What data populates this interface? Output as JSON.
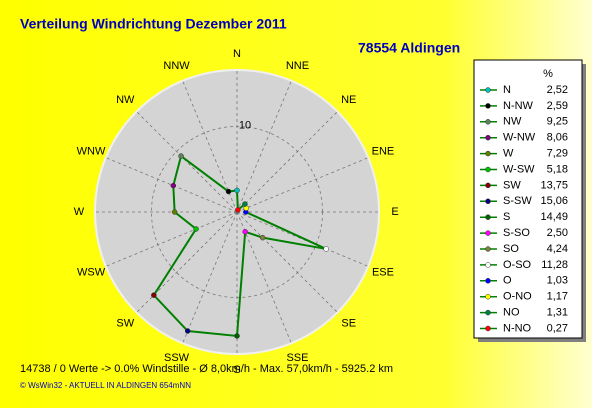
{
  "chart_data": {
    "type": "radar",
    "title": "Verteilung Windrichtung   Dezember 2011",
    "subtitle": "78554 Aldingen",
    "categories": [
      "N",
      "NNE",
      "NE",
      "ENE",
      "E",
      "ESE",
      "SE",
      "SSE",
      "S",
      "SSW",
      "SW",
      "WSW",
      "W",
      "WNW",
      "NW",
      "NNW"
    ],
    "legend_title": "%",
    "legend_labels": [
      "N",
      "N-NW",
      "NW",
      "W-NW",
      "W",
      "W-SW",
      "SW",
      "S-SW",
      "S",
      "S-SO",
      "SO",
      "O-SO",
      "O",
      "O-NO",
      "NO",
      "N-NO"
    ],
    "values": [
      2.52,
      2.59,
      9.25,
      8.06,
      7.29,
      5.18,
      13.75,
      15.06,
      14.49,
      2.5,
      4.24,
      11.28,
      1.03,
      1.17,
      1.31,
      0.27
    ],
    "value_labels": [
      "2,52",
      "2,59",
      "9,25",
      "8,06",
      "7,29",
      "5,18",
      "13,75",
      "15,06",
      "14,49",
      "2,50",
      "4,24",
      "11,28",
      "1,03",
      "1,17",
      "1,31",
      "0,27"
    ],
    "colors": [
      "#00c0c0",
      "#000000",
      "#608060",
      "#800080",
      "#608000",
      "#00c000",
      "#800000",
      "#000080",
      "#006000",
      "#ff00ff",
      "#808040",
      "#ffffff",
      "#0000ff",
      "#ffff00",
      "#008040",
      "#ff0000"
    ],
    "line_color": "#008000",
    "rlim": [
      0,
      16.6
    ],
    "rticks": [
      10
    ]
  },
  "footer": [
    "14738 / 0 Werte  -> 0.0% Windstille   -   Ø 8,0km/h   -   Max. 57,0km/h   -   5925.2 km",
    "© WsWin32  -  AKTUELL IN ALDINGEN 654mNN"
  ]
}
